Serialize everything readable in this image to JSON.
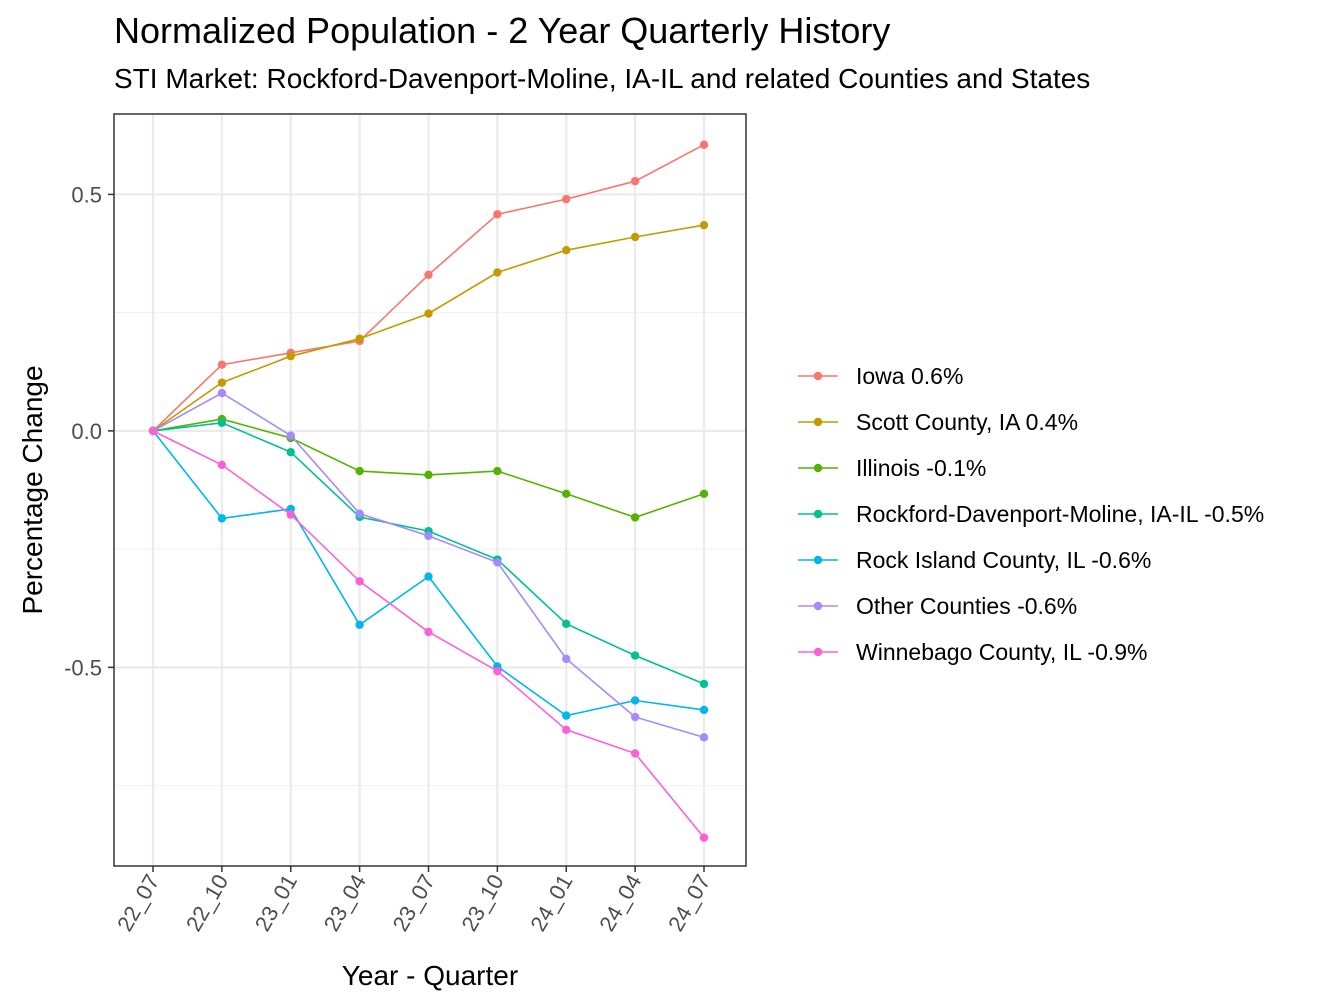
{
  "chart_data": {
    "type": "line",
    "title": "Normalized Population - 2 Year Quarterly History",
    "subtitle": "STI Market: Rockford-Davenport-Moline, IA-IL and related Counties and States",
    "xlabel": "Year - Quarter",
    "ylabel": "Percentage Change",
    "categories": [
      "22_07",
      "22_10",
      "23_01",
      "23_04",
      "23_07",
      "23_10",
      "24_01",
      "24_04",
      "24_07"
    ],
    "ylim": [
      -0.92,
      0.67
    ],
    "yticks": [
      -0.5,
      0.0,
      0.5
    ],
    "ytick_labels": [
      "-0.5",
      "0.0",
      "0.5"
    ],
    "grid": true,
    "legend_position": "right",
    "series": [
      {
        "name": "Iowa 0.6%",
        "color": "#F8766D",
        "values": [
          0.0,
          0.14,
          0.165,
          0.19,
          0.33,
          0.458,
          0.49,
          0.528,
          0.605
        ]
      },
      {
        "name": "Scott County, IA 0.4%",
        "color": "#C49A00",
        "values": [
          0.0,
          0.102,
          0.158,
          0.195,
          0.248,
          0.335,
          0.382,
          0.41,
          0.435
        ]
      },
      {
        "name": "Illinois -0.1%",
        "color": "#53B400",
        "values": [
          0.0,
          0.025,
          -0.015,
          -0.085,
          -0.093,
          -0.085,
          -0.133,
          -0.183,
          -0.133
        ]
      },
      {
        "name": "Rockford-Davenport-Moline, IA-IL -0.5%",
        "color": "#00C094",
        "values": [
          0.0,
          0.017,
          -0.045,
          -0.182,
          -0.212,
          -0.272,
          -0.408,
          -0.475,
          -0.535
        ]
      },
      {
        "name": "Rock Island County, IL -0.6%",
        "color": "#00B6EB",
        "values": [
          0.0,
          -0.185,
          -0.165,
          -0.41,
          -0.308,
          -0.498,
          -0.602,
          -0.57,
          -0.59
        ]
      },
      {
        "name": "Other Counties -0.6%",
        "color": "#A58AFF",
        "values": [
          0.0,
          0.08,
          -0.01,
          -0.175,
          -0.222,
          -0.278,
          -0.482,
          -0.605,
          -0.648
        ]
      },
      {
        "name": "Winnebago County, IL -0.9%",
        "color": "#FB61D7",
        "values": [
          0.0,
          -0.072,
          -0.177,
          -0.318,
          -0.425,
          -0.508,
          -0.632,
          -0.682,
          -0.86
        ]
      }
    ]
  }
}
